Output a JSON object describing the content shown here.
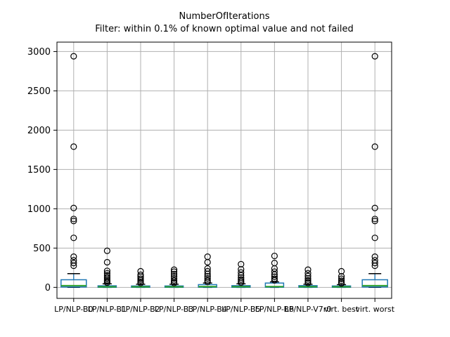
{
  "title": "NumberOfIterations",
  "subtitle": "Filter: within 0.1% of known optimal value and not failed",
  "chart_data": {
    "type": "boxplot",
    "title": "NumberOfIterations",
    "subtitle": "Filter: within 0.1% of known optimal value and not failed",
    "xlabel": "",
    "ylabel": "",
    "ylim": [
      -140,
      3120
    ],
    "yticks": [
      0,
      500,
      1000,
      1500,
      2000,
      2500,
      3000
    ],
    "grid": true,
    "legend": false,
    "categories": [
      "LP/NLP-B0",
      "LP/NLP-B1",
      "LP/NLP-B2",
      "LP/NLP-B3",
      "LP/NLP-B4",
      "LP/NLP-B5",
      "LP/NLP-B6",
      "LP/NLP-V7r0",
      "virt. best",
      "virt. worst"
    ],
    "series": [
      {
        "label": "LP/NLP-B0",
        "whislo": 1,
        "q1": 5,
        "med": 22,
        "q3": 97,
        "whishi": 175,
        "fliers": [
          275,
          310,
          345,
          390,
          630,
          845,
          870,
          1010,
          1790,
          2940
        ]
      },
      {
        "label": "LP/NLP-B1",
        "whislo": 0,
        "q1": 1,
        "med": 7,
        "q3": 20,
        "whishi": 45,
        "fliers": [
          60,
          75,
          90,
          110,
          130,
          155,
          180,
          210,
          320,
          465
        ]
      },
      {
        "label": "LP/NLP-B2",
        "whislo": 0,
        "q1": 1,
        "med": 7,
        "q3": 18,
        "whishi": 40,
        "fliers": [
          55,
          70,
          90,
          110,
          135,
          160,
          205
        ]
      },
      {
        "label": "LP/NLP-B3",
        "whislo": 0,
        "q1": 1,
        "med": 7,
        "q3": 18,
        "whishi": 40,
        "fliers": [
          55,
          70,
          90,
          115,
          140,
          170,
          200,
          225
        ]
      },
      {
        "label": "LP/NLP-B4",
        "whislo": 0,
        "q1": 2,
        "med": 10,
        "q3": 35,
        "whishi": 55,
        "fliers": [
          70,
          90,
          115,
          140,
          170,
          205,
          240,
          320,
          390
        ]
      },
      {
        "label": "LP/NLP-B5",
        "whislo": 0,
        "q1": 1,
        "med": 8,
        "q3": 22,
        "whishi": 45,
        "fliers": [
          60,
          80,
          100,
          125,
          155,
          190,
          230,
          295
        ]
      },
      {
        "label": "LP/NLP-B6",
        "whislo": 0,
        "q1": 2,
        "med": 10,
        "q3": 55,
        "whishi": 70,
        "fliers": [
          90,
          110,
          135,
          165,
          200,
          240,
          310,
          400
        ]
      },
      {
        "label": "LP/NLP-V7r0",
        "whislo": 0,
        "q1": 1,
        "med": 8,
        "q3": 22,
        "whishi": 40,
        "fliers": [
          55,
          70,
          90,
          115,
          145,
          180,
          225
        ]
      },
      {
        "label": "virt. best",
        "whislo": 0,
        "q1": 1,
        "med": 7,
        "q3": 18,
        "whishi": 35,
        "fliers": [
          50,
          65,
          85,
          110,
          140,
          205
        ]
      },
      {
        "label": "virt. worst",
        "whislo": 1,
        "q1": 5,
        "med": 22,
        "q3": 97,
        "whishi": 175,
        "fliers": [
          275,
          310,
          345,
          390,
          630,
          845,
          870,
          1010,
          1790,
          2940
        ]
      }
    ],
    "colors": {
      "box": "#1f77b4",
      "whisker": "#1f77b4",
      "median": "#2ca02c",
      "cap": "#000000",
      "flier": "#000000",
      "grid": "#b0b0b0",
      "axis": "#000000",
      "text": "#000000",
      "background": "#ffffff"
    }
  }
}
